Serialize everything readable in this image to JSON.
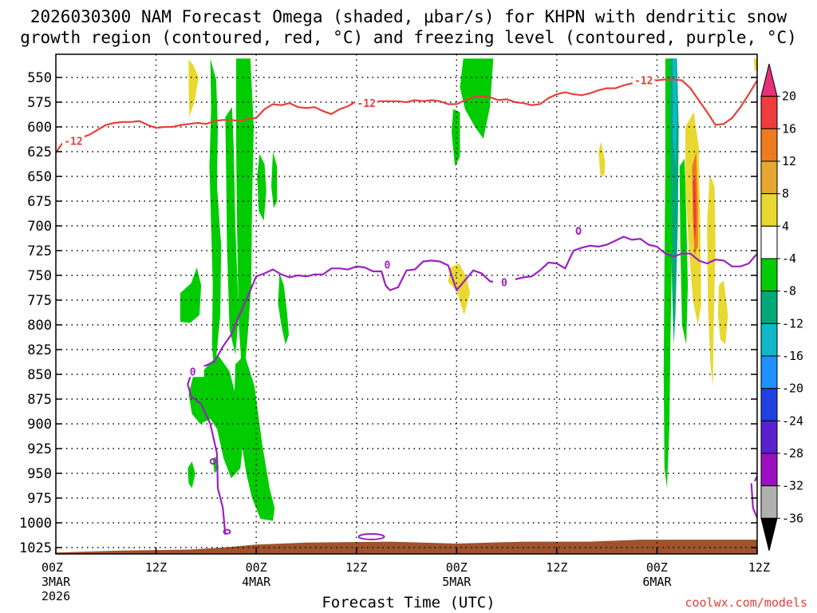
{
  "title_line1": "2026030300 NAM Forecast Omega (shaded, μbar/s) for KHPN with dendritic snow",
  "title_line2": "growth region (contoured, red, °C) and freezing level (contoured, purple, °C)",
  "credit": "coolwx.com/models",
  "chart_data": {
    "type": "heatmap",
    "title": "2026030300 NAM Forecast Omega (shaded, μbar/s) for KHPN with dendritic snow growth region (contoured, red, °C) and freezing level (contoured, purple, °C)",
    "xlabel": "Forecast Time (UTC)",
    "ylabel": "",
    "x_range_hours": [
      0,
      84
    ],
    "y_range_hPa": [
      530,
      1040
    ],
    "y_ticks": [
      "550",
      "575",
      "600",
      "625",
      "650",
      "675",
      "700",
      "725",
      "750",
      "775",
      "800",
      "825",
      "850",
      "875",
      "900",
      "925",
      "950",
      "975",
      "1000",
      "1025"
    ],
    "x_ticks": [
      {
        "h": 0,
        "line1": "00Z",
        "line2": "3MAR",
        "line3": "2026"
      },
      {
        "h": 12,
        "line1": "12Z",
        "line2": "",
        "line3": ""
      },
      {
        "h": 24,
        "line1": "00Z",
        "line2": "4MAR",
        "line3": ""
      },
      {
        "h": 36,
        "line1": "12Z",
        "line2": "",
        "line3": ""
      },
      {
        "h": 48,
        "line1": "00Z",
        "line2": "5MAR",
        "line3": ""
      },
      {
        "h": 60,
        "line1": "12Z",
        "line2": "",
        "line3": ""
      },
      {
        "h": 72,
        "line1": "00Z",
        "line2": "6MAR",
        "line3": ""
      },
      {
        "h": 84,
        "line1": "12Z",
        "line2": "",
        "line3": ""
      }
    ],
    "grid": true,
    "colorbar": {
      "labels": [
        "20",
        "16",
        "12",
        "8",
        "4",
        "-4",
        "-8",
        "-12",
        "-16",
        "-20",
        "-24",
        "-28",
        "-32",
        "-36"
      ],
      "colors": [
        "#e8307a",
        "#f03c3c",
        "#f07a20",
        "#e8a830",
        "#e8d830",
        "#ffffff",
        "#00cc00",
        "#00aa77",
        "#10b8c8",
        "#1e90ff",
        "#2040e0",
        "#5a20d0",
        "#9a10c0",
        "#b0b0b0",
        "#000000"
      ]
    },
    "contours": {
      "dgz_label": "-12",
      "dgz_color": "#e8403a",
      "dgz_line": [
        [
          0,
          626
        ],
        [
          0.5,
          620
        ],
        [
          1,
          614
        ],
        [
          1.5,
          611
        ],
        [
          2,
          610
        ],
        [
          3,
          611
        ],
        [
          4,
          608
        ],
        [
          5,
          603
        ],
        [
          6,
          598
        ],
        [
          7,
          596
        ],
        [
          8,
          595
        ],
        [
          9,
          595
        ],
        [
          10,
          594
        ],
        [
          11,
          598
        ],
        [
          12,
          601
        ],
        [
          13,
          600
        ],
        [
          14,
          600
        ],
        [
          15,
          598
        ],
        [
          16,
          597
        ],
        [
          17,
          596
        ],
        [
          18,
          597
        ],
        [
          19,
          594
        ],
        [
          20,
          593
        ],
        [
          21,
          593
        ],
        [
          22,
          594
        ],
        [
          23,
          592
        ],
        [
          24,
          591
        ],
        [
          25,
          582
        ],
        [
          26,
          577
        ],
        [
          27,
          578
        ],
        [
          28,
          576
        ],
        [
          29,
          580
        ],
        [
          30,
          581
        ],
        [
          31,
          580
        ],
        [
          32,
          584
        ],
        [
          33,
          587
        ],
        [
          34,
          582
        ],
        [
          35,
          579
        ],
        [
          36,
          574
        ],
        [
          37,
          573
        ],
        [
          38,
          574
        ],
        [
          39,
          574
        ],
        [
          40,
          574
        ],
        [
          41,
          574
        ],
        [
          42,
          575
        ],
        [
          43,
          573
        ],
        [
          44,
          574
        ],
        [
          45,
          573
        ],
        [
          46,
          574
        ],
        [
          47,
          577
        ],
        [
          48,
          577
        ],
        [
          49,
          573
        ],
        [
          50,
          570
        ],
        [
          51,
          569
        ],
        [
          52,
          570
        ],
        [
          53,
          573
        ],
        [
          54,
          572
        ],
        [
          55,
          575
        ],
        [
          56,
          576
        ],
        [
          57,
          578
        ],
        [
          58,
          577
        ],
        [
          59,
          571
        ],
        [
          60,
          567
        ],
        [
          61,
          565
        ],
        [
          62,
          567
        ],
        [
          63,
          568
        ],
        [
          64,
          566
        ],
        [
          65,
          563
        ],
        [
          66,
          561
        ],
        [
          67,
          561
        ],
        [
          68,
          558
        ],
        [
          69,
          556
        ],
        [
          70,
          553
        ],
        [
          71,
          552
        ],
        [
          72,
          553
        ],
        [
          73,
          552
        ],
        [
          74,
          552
        ],
        [
          75,
          553
        ],
        [
          76,
          561
        ],
        [
          77,
          573
        ],
        [
          78,
          585
        ],
        [
          79,
          598
        ],
        [
          80,
          597
        ],
        [
          81,
          591
        ],
        [
          82,
          580
        ],
        [
          83,
          567
        ],
        [
          84,
          553
        ]
      ],
      "fz_label": "0",
      "fz_color": "#9a22c0",
      "fz_line": [
        [
          16.2,
          850
        ],
        [
          17,
          843
        ],
        [
          18,
          841
        ],
        [
          19,
          837
        ],
        [
          20,
          822
        ],
        [
          21,
          810
        ],
        [
          22,
          790
        ],
        [
          23,
          771
        ],
        [
          24,
          751
        ],
        [
          25,
          748
        ],
        [
          26,
          744
        ],
        [
          27,
          749
        ],
        [
          28,
          752
        ],
        [
          29,
          750
        ],
        [
          30,
          751
        ],
        [
          31,
          749
        ],
        [
          32,
          749
        ],
        [
          33,
          743
        ],
        [
          34,
          743
        ],
        [
          35,
          744
        ],
        [
          36,
          741
        ],
        [
          37,
          742
        ],
        [
          38,
          746
        ],
        [
          39,
          746
        ],
        [
          39.5,
          760
        ],
        [
          40,
          765
        ],
        [
          41,
          762
        ],
        [
          42,
          745
        ],
        [
          43,
          744
        ],
        [
          44,
          736
        ],
        [
          45,
          735
        ],
        [
          46,
          736
        ],
        [
          47,
          740
        ],
        [
          48,
          765
        ],
        [
          49,
          755
        ],
        [
          50,
          745
        ],
        [
          51,
          748
        ],
        [
          52,
          756
        ],
        [
          53,
          757
        ],
        [
          54,
          753
        ],
        [
          55,
          754
        ],
        [
          56,
          752
        ],
        [
          57,
          751
        ],
        [
          58,
          745
        ],
        [
          59,
          737
        ],
        [
          60,
          738
        ],
        [
          61,
          743
        ],
        [
          62,
          725
        ],
        [
          63,
          722
        ],
        [
          64,
          720
        ],
        [
          65,
          721
        ],
        [
          66,
          719
        ],
        [
          67,
          715
        ],
        [
          68,
          711
        ],
        [
          69,
          714
        ],
        [
          70,
          713
        ],
        [
          71,
          719
        ],
        [
          72,
          721
        ],
        [
          73,
          728
        ],
        [
          74,
          731
        ],
        [
          75,
          728
        ],
        [
          76,
          728
        ],
        [
          77,
          735
        ],
        [
          78,
          738
        ],
        [
          79,
          734
        ],
        [
          80,
          735
        ],
        [
          81,
          741
        ],
        [
          82,
          741
        ],
        [
          83,
          738
        ],
        [
          84,
          728
        ]
      ]
    },
    "omega_regions_note": "Shaded omega regions: green (-4 to -8) ascent plumes near 16-27h, 47-50h and 74-76h; yellow (4-8) near 16h, 48h, 78-80h; red/orange core near 77h; teal/blue near 74-75h."
  }
}
